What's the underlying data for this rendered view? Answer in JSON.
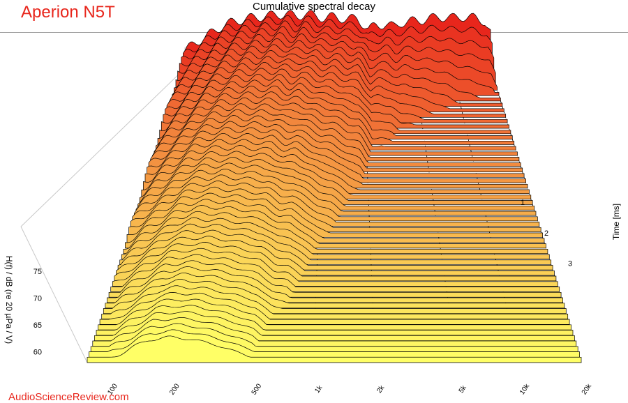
{
  "brand": "Aperion N5T",
  "watermark": "AudioScienceReview.com",
  "chart_data": {
    "type": "waterfall",
    "title": "Cumulative spectral decay",
    "ylabel": "H(f) / dB (re 20 µPa / V)",
    "zlabel": "Time [ms]",
    "x_scale": "log",
    "xlim": [
      80,
      20000
    ],
    "ylim": [
      58,
      79
    ],
    "zlim": [
      0,
      4
    ],
    "x_ticks": [
      {
        "value": 100,
        "label": "100"
      },
      {
        "value": 200,
        "label": "200"
      },
      {
        "value": 500,
        "label": "500"
      },
      {
        "value": 1000,
        "label": "1k"
      },
      {
        "value": 2000,
        "label": "2k"
      },
      {
        "value": 5000,
        "label": "5k"
      },
      {
        "value": 10000,
        "label": "10k"
      },
      {
        "value": 20000,
        "label": "20k"
      }
    ],
    "y_ticks": [
      {
        "value": 60,
        "label": "60"
      },
      {
        "value": 65,
        "label": "65"
      },
      {
        "value": 70,
        "label": "70"
      },
      {
        "value": 75,
        "label": "75"
      }
    ],
    "z_ticks": [
      {
        "value": 1,
        "label": "1"
      },
      {
        "value": 2,
        "label": "2"
      },
      {
        "value": 3,
        "label": "3"
      }
    ],
    "slices_count": 55,
    "time_step_ms": 0.07,
    "initial_response_db": {
      "freq_hz": [
        80,
        100,
        130,
        160,
        200,
        260,
        320,
        400,
        500,
        600,
        700,
        800,
        1000,
        1200,
        1500,
        1800,
        2000,
        2200,
        2500,
        3000,
        3500,
        4000,
        5000,
        6000,
        7000,
        8000,
        10000,
        12000,
        15000,
        18000,
        20000
      ],
      "level_db": [
        64,
        67,
        70,
        72.5,
        74,
        75,
        75.5,
        76,
        76.5,
        75.5,
        76.5,
        76,
        75,
        75.5,
        74.5,
        75,
        73,
        71,
        72.5,
        73,
        72,
        73.5,
        74,
        74.5,
        75,
        75.5,
        75,
        75.5,
        75,
        74,
        70
      ]
    },
    "noise_floor_db": 59,
    "colors": {
      "late": "#ffff66",
      "early": "#e8261c",
      "outline": "#000000"
    },
    "grid": true
  }
}
